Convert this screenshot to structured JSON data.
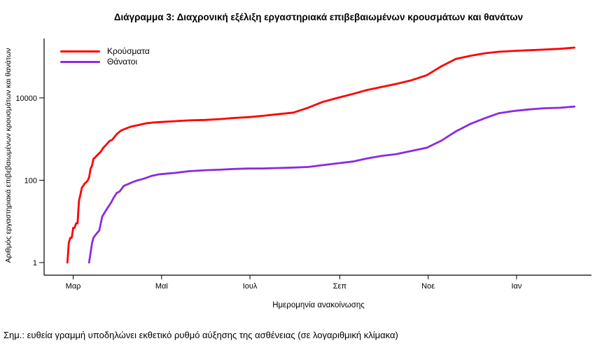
{
  "title": "Διάγραμμα 3: Διαχρονική εξέλιξη εργαστηριακά επιβεβαιωμένων κρουσμάτων και θανάτων",
  "y_axis_label": "Αριθμός εργαστηριακά επιβεβαιωμένων κρουσμάτων και θανάτων",
  "x_axis_label": "Ημερομηνία ανακοίνωσης",
  "footnote": "Σημ.: ευθεία γραμμή υποδηλώνει εκθετικό ρυθμό αύξησης της ασθένειας (σε λογαριθμική κλίμακα)",
  "legend": [
    {
      "label": "Κρούσματα",
      "color": "#fe0000"
    },
    {
      "label": "Θάνατοι",
      "color": "#8a2be2"
    }
  ],
  "chart_data": {
    "type": "line",
    "y_scale": "log10",
    "grid": false,
    "legend_position": "top-left-inside",
    "y_ticks": [
      "1",
      "100",
      "10000"
    ],
    "y_range": [
      1,
      400000
    ],
    "x_range": [
      "2020-02-22",
      "2021-02-14"
    ],
    "x_ticks": [
      {
        "label": "Μαρ",
        "date": "2020-03-01"
      },
      {
        "label": "Μαϊ",
        "date": "2020-05-01"
      },
      {
        "label": "Ιουλ",
        "date": "2020-07-01"
      },
      {
        "label": "Σεπ",
        "date": "2020-09-01"
      },
      {
        "label": "Νοε",
        "date": "2020-11-01"
      },
      {
        "label": "Ιαν",
        "date": "2021-01-01"
      }
    ],
    "series": [
      {
        "name": "Κρούσματα",
        "color": "#fe0000",
        "points": [
          [
            "2020-02-26",
            1
          ],
          [
            "2020-02-27",
            3
          ],
          [
            "2020-02-28",
            4
          ],
          [
            "2020-02-29",
            4
          ],
          [
            "2020-03-01",
            7
          ],
          [
            "2020-03-02",
            7
          ],
          [
            "2020-03-03",
            9
          ],
          [
            "2020-03-04",
            9
          ],
          [
            "2020-03-05",
            31
          ],
          [
            "2020-03-06",
            45
          ],
          [
            "2020-03-07",
            66
          ],
          [
            "2020-03-08",
            73
          ],
          [
            "2020-03-09",
            84
          ],
          [
            "2020-03-10",
            89
          ],
          [
            "2020-03-11",
            99
          ],
          [
            "2020-03-12",
            117
          ],
          [
            "2020-03-13",
            190
          ],
          [
            "2020-03-14",
            228
          ],
          [
            "2020-03-15",
            331
          ],
          [
            "2020-03-16",
            352
          ],
          [
            "2020-03-17",
            387
          ],
          [
            "2020-03-18",
            418
          ],
          [
            "2020-03-20",
            495
          ],
          [
            "2020-03-22",
            624
          ],
          [
            "2020-03-24",
            743
          ],
          [
            "2020-03-26",
            892
          ],
          [
            "2020-03-28",
            966
          ],
          [
            "2020-03-31",
            1314
          ],
          [
            "2020-04-03",
            1613
          ],
          [
            "2020-04-07",
            1832
          ],
          [
            "2020-04-10",
            2011
          ],
          [
            "2020-04-15",
            2192
          ],
          [
            "2020-04-20",
            2401
          ],
          [
            "2020-04-25",
            2517
          ],
          [
            "2020-04-30",
            2591
          ],
          [
            "2020-05-10",
            2716
          ],
          [
            "2020-05-20",
            2840
          ],
          [
            "2020-05-31",
            2917
          ],
          [
            "2020-06-10",
            3049
          ],
          [
            "2020-06-20",
            3256
          ],
          [
            "2020-06-30",
            3409
          ],
          [
            "2020-07-10",
            3672
          ],
          [
            "2020-07-20",
            4007
          ],
          [
            "2020-07-31",
            4401
          ],
          [
            "2020-08-10",
            5749
          ],
          [
            "2020-08-20",
            7934
          ],
          [
            "2020-08-31",
            10134
          ],
          [
            "2020-09-10",
            12452
          ],
          [
            "2020-09-20",
            15595
          ],
          [
            "2020-09-30",
            18475
          ],
          [
            "2020-10-10",
            21772
          ],
          [
            "2020-10-20",
            26469
          ],
          [
            "2020-10-31",
            35510
          ],
          [
            "2020-11-10",
            58187
          ],
          [
            "2020-11-20",
            87812
          ],
          [
            "2020-11-30",
            105271
          ],
          [
            "2020-12-10",
            120926
          ],
          [
            "2020-12-20",
            131856
          ],
          [
            "2020-12-31",
            138850
          ],
          [
            "2021-01-10",
            144097
          ],
          [
            "2021-01-20",
            149279
          ],
          [
            "2021-01-31",
            155678
          ],
          [
            "2021-02-10",
            166360
          ]
        ]
      },
      {
        "name": "Θάνατοι",
        "color": "#8a2be2",
        "points": [
          [
            "2020-03-12",
            1
          ],
          [
            "2020-03-14",
            3
          ],
          [
            "2020-03-15",
            4
          ],
          [
            "2020-03-17",
            5
          ],
          [
            "2020-03-19",
            6
          ],
          [
            "2020-03-21",
            13
          ],
          [
            "2020-03-23",
            17
          ],
          [
            "2020-03-25",
            22
          ],
          [
            "2020-03-27",
            28
          ],
          [
            "2020-03-29",
            38
          ],
          [
            "2020-03-31",
            49
          ],
          [
            "2020-04-02",
            53
          ],
          [
            "2020-04-05",
            73
          ],
          [
            "2020-04-08",
            81
          ],
          [
            "2020-04-11",
            90
          ],
          [
            "2020-04-14",
            98
          ],
          [
            "2020-04-17",
            105
          ],
          [
            "2020-04-20",
            113
          ],
          [
            "2020-04-24",
            127
          ],
          [
            "2020-04-28",
            136
          ],
          [
            "2020-04-30",
            140
          ],
          [
            "2020-05-10",
            150
          ],
          [
            "2020-05-20",
            166
          ],
          [
            "2020-05-31",
            175
          ],
          [
            "2020-06-10",
            180
          ],
          [
            "2020-06-20",
            188
          ],
          [
            "2020-06-30",
            192
          ],
          [
            "2020-07-10",
            193
          ],
          [
            "2020-07-20",
            198
          ],
          [
            "2020-07-31",
            203
          ],
          [
            "2020-08-10",
            210
          ],
          [
            "2020-08-20",
            232
          ],
          [
            "2020-08-31",
            259
          ],
          [
            "2020-09-10",
            284
          ],
          [
            "2020-09-20",
            338
          ],
          [
            "2020-09-30",
            391
          ],
          [
            "2020-10-10",
            431
          ],
          [
            "2020-10-20",
            511
          ],
          [
            "2020-10-31",
            615
          ],
          [
            "2020-11-10",
            909
          ],
          [
            "2020-11-20",
            1527
          ],
          [
            "2020-11-30",
            2321
          ],
          [
            "2020-12-10",
            3194
          ],
          [
            "2020-12-20",
            4257
          ],
          [
            "2020-12-31",
            4838
          ],
          [
            "2021-01-10",
            5263
          ],
          [
            "2021-01-20",
            5607
          ],
          [
            "2021-01-31",
            5764
          ],
          [
            "2021-02-10",
            6152
          ]
        ]
      }
    ]
  }
}
